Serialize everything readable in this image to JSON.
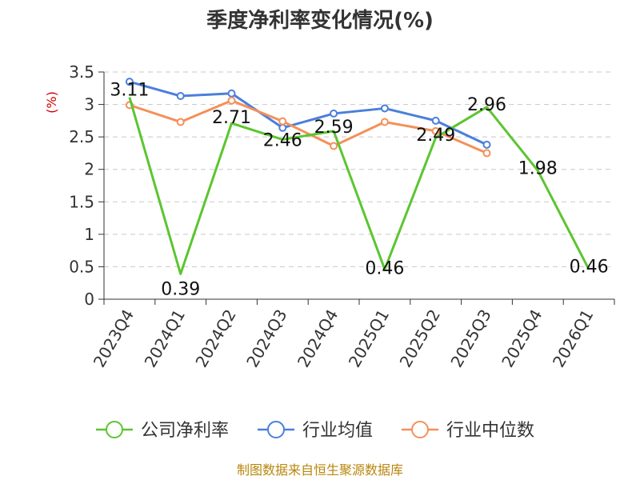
{
  "chart_data": {
    "type": "line",
    "title": "季度净利率变化情况(%)",
    "ylabel": "(%)",
    "xlabel": "",
    "categories": [
      "2023Q4",
      "2024Q1",
      "2024Q2",
      "2024Q3",
      "2024Q4",
      "2025Q1",
      "2025Q2",
      "2025Q3",
      "2025Q4",
      "2026Q1"
    ],
    "yticks": [
      "0",
      "0.5",
      "1",
      "1.5",
      "2",
      "2.5",
      "3",
      "3.5"
    ],
    "ylim": [
      0,
      3.5
    ],
    "grid": true,
    "legend_position": "bottom",
    "series": [
      {
        "name": "公司净利率",
        "color": "#5cc530",
        "values": [
          3.11,
          0.39,
          2.71,
          2.46,
          2.59,
          0.46,
          2.49,
          2.96,
          1.98,
          0.46
        ],
        "labels": [
          "3.11",
          "0.39",
          "2.71",
          "2.46",
          "2.59",
          "0.46",
          "2.49",
          "2.96",
          "1.98",
          "0.46"
        ]
      },
      {
        "name": "行业均值",
        "color": "#4a7fdc",
        "values": [
          3.35,
          3.13,
          3.17,
          2.64,
          2.86,
          2.94,
          2.75,
          2.38,
          null,
          null
        ]
      },
      {
        "name": "行业中位数",
        "color": "#f4905a",
        "values": [
          2.99,
          2.73,
          3.06,
          2.74,
          2.36,
          2.73,
          2.59,
          2.25,
          null,
          null
        ]
      }
    ],
    "source": "制图数据来自恒生聚源数据库"
  }
}
